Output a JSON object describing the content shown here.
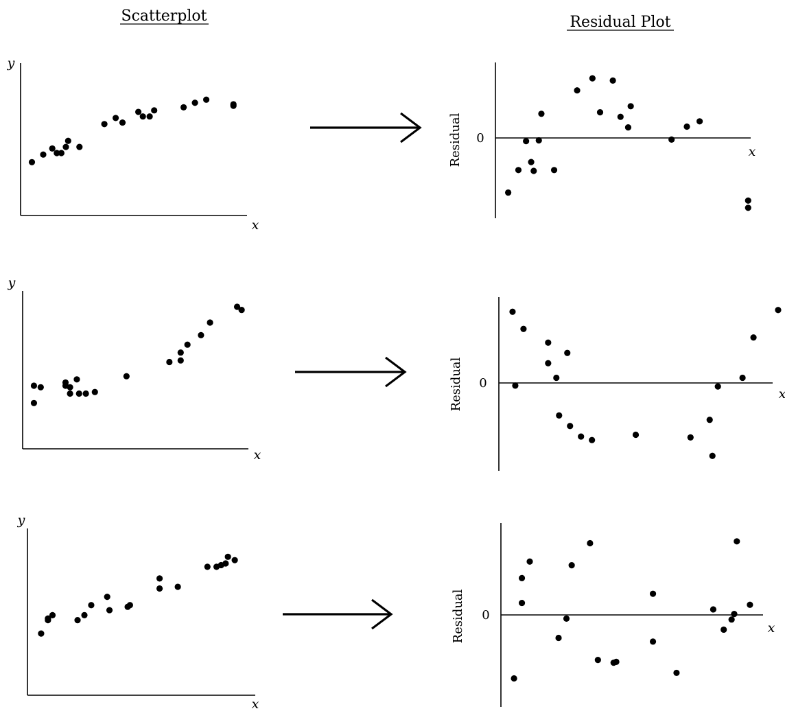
{
  "headers": {
    "scatterplot": "Scatterplot",
    "residual": "Residual Plot"
  },
  "colors": {
    "ink": "#000000",
    "background": "#ffffff"
  },
  "chart_data": [
    {
      "type": "scatter",
      "ylabel": "y",
      "xlabel": "x",
      "grid": false,
      "points": [
        [
          0.05,
          0.35
        ],
        [
          0.1,
          0.4
        ],
        [
          0.14,
          0.44
        ],
        [
          0.16,
          0.41
        ],
        [
          0.18,
          0.41
        ],
        [
          0.2,
          0.45
        ],
        [
          0.21,
          0.49
        ],
        [
          0.26,
          0.45
        ],
        [
          0.37,
          0.6
        ],
        [
          0.42,
          0.64
        ],
        [
          0.45,
          0.61
        ],
        [
          0.52,
          0.68
        ],
        [
          0.54,
          0.65
        ],
        [
          0.57,
          0.65
        ],
        [
          0.59,
          0.69
        ],
        [
          0.72,
          0.71
        ],
        [
          0.77,
          0.74
        ],
        [
          0.82,
          0.76
        ],
        [
          0.94,
          0.72
        ],
        [
          0.94,
          0.73
        ]
      ]
    },
    {
      "type": "scatter",
      "ylabel": "Residual",
      "xlabel": "x",
      "yticks": [
        0
      ],
      "grid": false,
      "points": [
        [
          0.05,
          -0.68
        ],
        [
          0.09,
          -0.4
        ],
        [
          0.12,
          -0.04
        ],
        [
          0.14,
          -0.3
        ],
        [
          0.15,
          -0.41
        ],
        [
          0.17,
          -0.03
        ],
        [
          0.18,
          0.32
        ],
        [
          0.23,
          -0.4
        ],
        [
          0.32,
          0.63
        ],
        [
          0.38,
          0.79
        ],
        [
          0.41,
          0.34
        ],
        [
          0.46,
          0.76
        ],
        [
          0.49,
          0.28
        ],
        [
          0.52,
          0.14
        ],
        [
          0.53,
          0.42
        ],
        [
          0.69,
          -0.02
        ],
        [
          0.75,
          0.15
        ],
        [
          0.8,
          0.22
        ],
        [
          0.99,
          -0.78
        ],
        [
          0.99,
          -0.87
        ]
      ]
    },
    {
      "type": "scatter",
      "ylabel": "y",
      "xlabel": "x",
      "grid": false,
      "points": [
        [
          0.05,
          0.29
        ],
        [
          0.05,
          0.4
        ],
        [
          0.08,
          0.39
        ],
        [
          0.19,
          0.42
        ],
        [
          0.19,
          0.4
        ],
        [
          0.21,
          0.35
        ],
        [
          0.21,
          0.39
        ],
        [
          0.24,
          0.44
        ],
        [
          0.25,
          0.35
        ],
        [
          0.28,
          0.35
        ],
        [
          0.32,
          0.36
        ],
        [
          0.46,
          0.46
        ],
        [
          0.65,
          0.55
        ],
        [
          0.7,
          0.56
        ],
        [
          0.7,
          0.61
        ],
        [
          0.73,
          0.66
        ],
        [
          0.79,
          0.72
        ],
        [
          0.83,
          0.8
        ],
        [
          0.95,
          0.9
        ],
        [
          0.97,
          0.88
        ]
      ]
    },
    {
      "type": "scatter",
      "ylabel": "Residual",
      "xlabel": "x",
      "yticks": [
        0
      ],
      "grid": false,
      "points": [
        [
          0.05,
          0.83
        ],
        [
          0.06,
          -0.03
        ],
        [
          0.09,
          0.63
        ],
        [
          0.18,
          0.47
        ],
        [
          0.18,
          0.23
        ],
        [
          0.21,
          0.06
        ],
        [
          0.22,
          -0.37
        ],
        [
          0.25,
          0.35
        ],
        [
          0.26,
          -0.49
        ],
        [
          0.3,
          -0.61
        ],
        [
          0.34,
          -0.65
        ],
        [
          0.5,
          -0.59
        ],
        [
          0.7,
          -0.62
        ],
        [
          0.77,
          -0.42
        ],
        [
          0.78,
          -0.83
        ],
        [
          0.8,
          -0.04
        ],
        [
          0.89,
          0.06
        ],
        [
          0.93,
          0.53
        ],
        [
          1.02,
          0.85
        ],
        [
          1.06,
          0.54
        ]
      ]
    },
    {
      "type": "scatter",
      "ylabel": "y",
      "xlabel": "x",
      "grid": false,
      "points": [
        [
          0.06,
          0.37
        ],
        [
          0.09,
          0.45
        ],
        [
          0.09,
          0.46
        ],
        [
          0.11,
          0.48
        ],
        [
          0.22,
          0.45
        ],
        [
          0.25,
          0.48
        ],
        [
          0.28,
          0.54
        ],
        [
          0.35,
          0.59
        ],
        [
          0.36,
          0.51
        ],
        [
          0.44,
          0.53
        ],
        [
          0.45,
          0.54
        ],
        [
          0.58,
          0.64
        ],
        [
          0.58,
          0.7
        ],
        [
          0.66,
          0.65
        ],
        [
          0.79,
          0.77
        ],
        [
          0.83,
          0.77
        ],
        [
          0.85,
          0.78
        ],
        [
          0.87,
          0.79
        ],
        [
          0.88,
          0.83
        ],
        [
          0.91,
          0.81
        ]
      ]
    },
    {
      "type": "scatter",
      "ylabel": "Residual",
      "xlabel": "x",
      "yticks": [
        0
      ],
      "grid": false,
      "points": [
        [
          0.05,
          -0.69
        ],
        [
          0.08,
          0.13
        ],
        [
          0.08,
          0.4
        ],
        [
          0.11,
          0.58
        ],
        [
          0.22,
          -0.25
        ],
        [
          0.25,
          -0.04
        ],
        [
          0.27,
          0.54
        ],
        [
          0.34,
          0.78
        ],
        [
          0.37,
          -0.49
        ],
        [
          0.43,
          -0.52
        ],
        [
          0.44,
          -0.51
        ],
        [
          0.58,
          0.23
        ],
        [
          0.58,
          -0.29
        ],
        [
          0.67,
          -0.63
        ],
        [
          0.81,
          0.06
        ],
        [
          0.85,
          -0.16
        ],
        [
          0.88,
          -0.05
        ],
        [
          0.89,
          0.01
        ],
        [
          0.9,
          0.8
        ],
        [
          0.95,
          0.11
        ]
      ]
    }
  ]
}
